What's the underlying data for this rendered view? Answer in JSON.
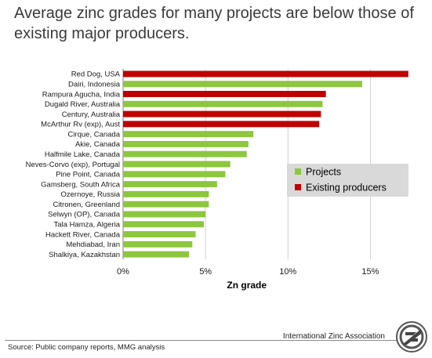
{
  "header": {
    "title": "Average zinc grades for many projects are below those of existing major producers."
  },
  "footer": {
    "organization": "International Zinc Association",
    "source": "Source: Public company reports, MMG analysis"
  },
  "colors": {
    "projects": "#8dc63f",
    "existing": "#c00000",
    "legend_bg": "#d9d9d9"
  },
  "chart_data": {
    "type": "bar",
    "orientation": "horizontal",
    "xlabel": "Zn grade",
    "xlim": [
      0,
      17.5
    ],
    "xticks": [
      0,
      5,
      10,
      15
    ],
    "xtick_labels": [
      "0%",
      "5%",
      "10%",
      "15%"
    ],
    "grid": "vertical-at-ticks",
    "legend_position": "right",
    "series": [
      {
        "name": "Projects",
        "color": "#8dc63f"
      },
      {
        "name": "Existing producers",
        "color": "#c00000"
      }
    ],
    "categories": [
      "Red Dog, USA",
      "Dairi, Indonesia",
      "Rampura Agucha, India",
      "Dugald River, Australia",
      "Century, Australia",
      "McArthur Rv (exp), Aust",
      "Cirque, Canada",
      "Akie, Canada",
      "Halfmile Lake, Canada",
      "Neves-Corvo (exp), Portugal",
      "Pine Point, Canada",
      "Gamsberg, South Africa",
      "Ozernoye, Russia",
      "Citronen, Greenland",
      "Selwyn (OP), Canada",
      "Tala Hamza, Algeria",
      "Hackett River, Canada",
      "Mehdiabad, Iran",
      "Shalkiya, Kazakhstan"
    ],
    "values": [
      17.3,
      14.5,
      12.3,
      12.1,
      12.0,
      11.9,
      7.9,
      7.6,
      7.5,
      6.5,
      6.2,
      5.7,
      5.2,
      5.2,
      5.0,
      4.9,
      4.4,
      4.2,
      4.0
    ],
    "groups": [
      "Existing producers",
      "Projects",
      "Existing producers",
      "Projects",
      "Existing producers",
      "Existing producers",
      "Projects",
      "Projects",
      "Projects",
      "Projects",
      "Projects",
      "Projects",
      "Projects",
      "Projects",
      "Projects",
      "Projects",
      "Projects",
      "Projects",
      "Projects"
    ]
  }
}
